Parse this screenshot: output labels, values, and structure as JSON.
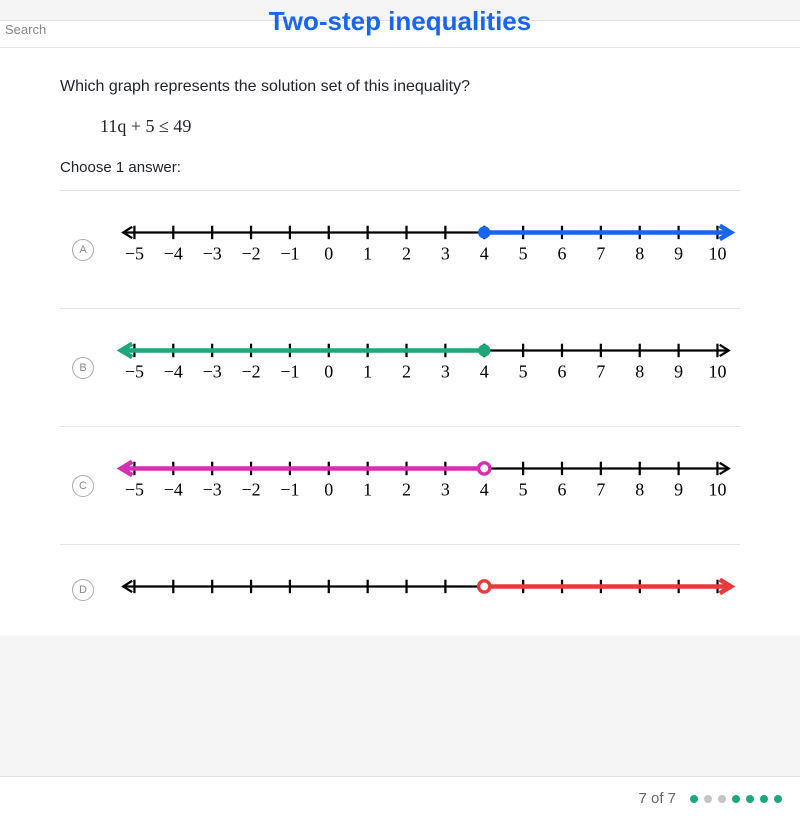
{
  "searchText": "Search",
  "title": "Two-step inequalities",
  "question": "Which graph represents the solution set of this inequality?",
  "inequality": "11q + 5 ≤ 49",
  "choose": "Choose 1 answer:",
  "footer": {
    "pager": "7 of 7",
    "dotColors": [
      "#1fa67a",
      "#c4c4c4",
      "#c4c4c4",
      "#1fa67a",
      "#1fa67a",
      "#1fa67a",
      "#1fa67a"
    ]
  },
  "numline": {
    "xStart": 20,
    "xEnd": 540,
    "tickStart": -5,
    "tickEnd": 10,
    "tickLabels": [
      "−5",
      "−4",
      "−3",
      "−2",
      "−1",
      "0",
      "1",
      "2",
      "3",
      "4",
      "5",
      "6",
      "7",
      "8",
      "9",
      "10"
    ],
    "axisColor": "#000",
    "tickFontSize": 16
  },
  "options": [
    {
      "label": "A",
      "color": "#1865f2",
      "criticalValue": 4,
      "filled": true,
      "direction": "right"
    },
    {
      "label": "B",
      "color": "#1fa67a",
      "criticalValue": 4,
      "filled": true,
      "direction": "left"
    },
    {
      "label": "C",
      "color": "#d62fb1",
      "criticalValue": 4,
      "filled": false,
      "direction": "left"
    },
    {
      "label": "D",
      "color": "#e8393c",
      "criticalValue": 4,
      "filled": false,
      "direction": "right"
    }
  ]
}
